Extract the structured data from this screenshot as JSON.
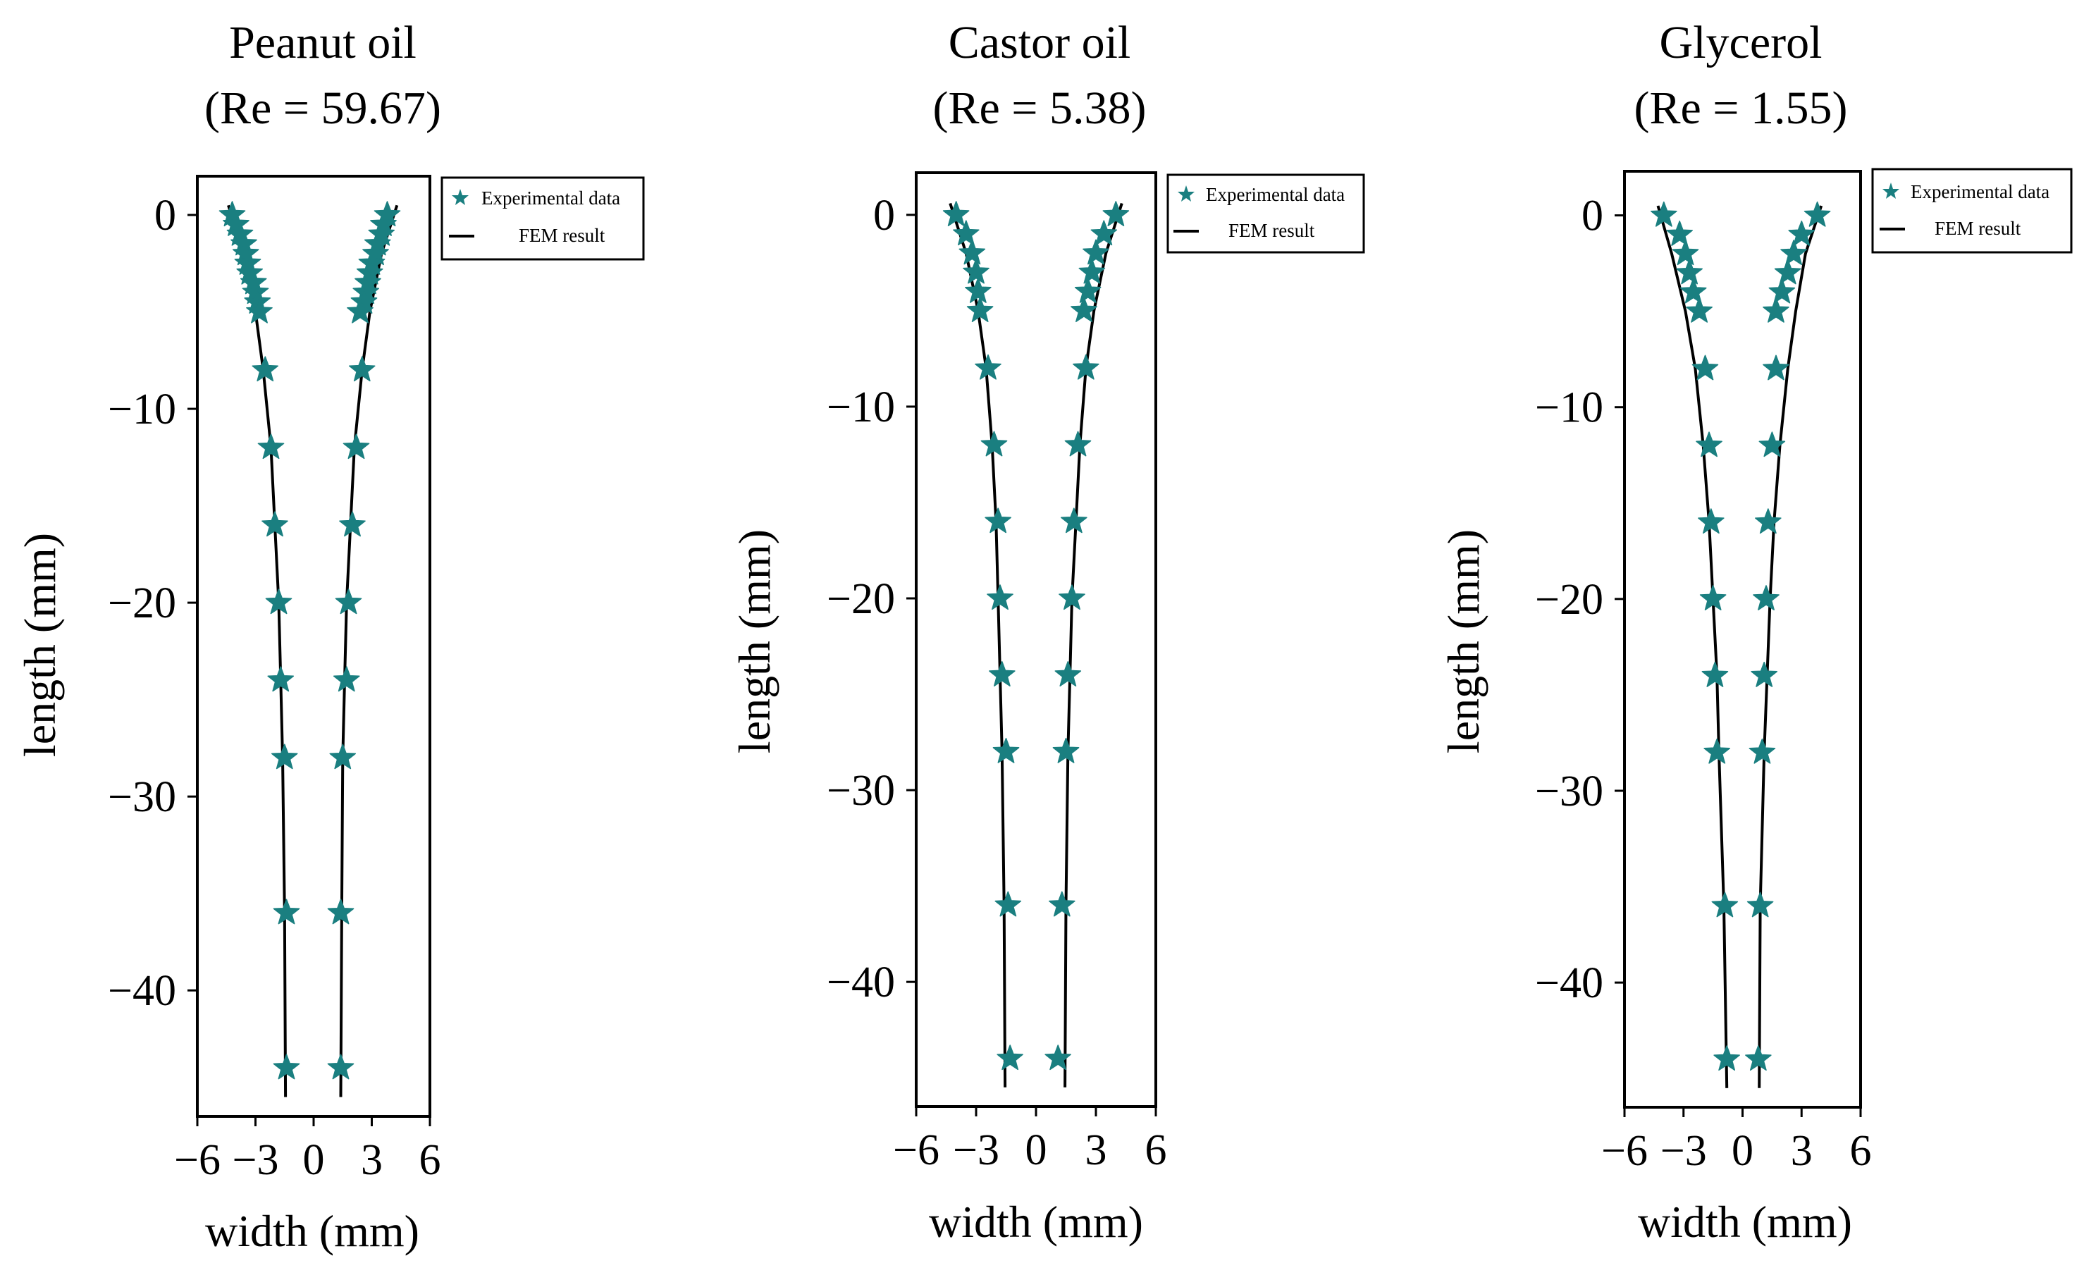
{
  "chart_data": [
    {
      "type": "line",
      "title": "Peanut oil",
      "subtitle": "(Re = 59.67)",
      "xlabel": "width (mm)",
      "ylabel": "length (mm)",
      "xlim": [
        -6,
        6
      ],
      "ylim": [
        -46.5,
        2
      ],
      "xticks": [
        -6,
        -3,
        0,
        3,
        6
      ],
      "xtick_labels": [
        "−6",
        "−3",
        "0",
        "3",
        "6"
      ],
      "yticks": [
        0,
        -10,
        -20,
        -30,
        -40
      ],
      "ytick_labels": [
        "0",
        "−10",
        "−20",
        "−30",
        "−40"
      ],
      "grid": false,
      "legend": {
        "placement": "outside-top-right",
        "entries": [
          "Experimental data",
          "FEM result"
        ]
      },
      "colors": {
        "experimental": "#1a7f80",
        "fem": "#000000"
      },
      "series": [
        {
          "name": "Experimental data",
          "marker": "star",
          "points": [
            [
              -4.2,
              0
            ],
            [
              -4.0,
              -0.5
            ],
            [
              -3.8,
              -1
            ],
            [
              -3.6,
              -1.5
            ],
            [
              -3.5,
              -2
            ],
            [
              -3.4,
              -2.5
            ],
            [
              -3.3,
              -3
            ],
            [
              -3.1,
              -3.5
            ],
            [
              -3.0,
              -4
            ],
            [
              -2.9,
              -4.5
            ],
            [
              -2.8,
              -5
            ],
            [
              -2.5,
              -8
            ],
            [
              -2.2,
              -12
            ],
            [
              -2.0,
              -16
            ],
            [
              -1.8,
              -20
            ],
            [
              -1.7,
              -24
            ],
            [
              -1.5,
              -28
            ],
            [
              -1.4,
              -36
            ],
            [
              -1.4,
              -44
            ],
            [
              3.8,
              0
            ],
            [
              3.6,
              -0.5
            ],
            [
              3.5,
              -1
            ],
            [
              3.3,
              -1.5
            ],
            [
              3.2,
              -2
            ],
            [
              3.0,
              -2.5
            ],
            [
              2.9,
              -3
            ],
            [
              2.8,
              -3.5
            ],
            [
              2.7,
              -4
            ],
            [
              2.6,
              -4.5
            ],
            [
              2.4,
              -5
            ],
            [
              2.5,
              -8
            ],
            [
              2.2,
              -12
            ],
            [
              2.0,
              -16
            ],
            [
              1.8,
              -20
            ],
            [
              1.7,
              -24
            ],
            [
              1.5,
              -28
            ],
            [
              1.4,
              -36
            ],
            [
              1.4,
              -44
            ]
          ]
        },
        {
          "name": "FEM result",
          "marker": "line",
          "left": [
            [
              -4.4,
              0.5
            ],
            [
              -3.6,
              -2
            ],
            [
              -3.0,
              -5
            ],
            [
              -2.6,
              -8
            ],
            [
              -2.2,
              -12
            ],
            [
              -2.0,
              -16
            ],
            [
              -1.8,
              -20
            ],
            [
              -1.7,
              -24
            ],
            [
              -1.6,
              -28
            ],
            [
              -1.5,
              -36
            ],
            [
              -1.45,
              -45.5
            ]
          ],
          "right": [
            [
              4.3,
              0.5
            ],
            [
              3.5,
              -2
            ],
            [
              2.9,
              -5
            ],
            [
              2.5,
              -8
            ],
            [
              2.1,
              -12
            ],
            [
              1.9,
              -16
            ],
            [
              1.7,
              -20
            ],
            [
              1.6,
              -24
            ],
            [
              1.5,
              -28
            ],
            [
              1.45,
              -36
            ],
            [
              1.4,
              -45.5
            ]
          ]
        }
      ]
    },
    {
      "type": "line",
      "title": "Castor oil",
      "subtitle": "(Re = 5.38)",
      "xlabel": "width (mm)",
      "ylabel": "length (mm)",
      "xlim": [
        -6,
        6
      ],
      "ylim": [
        -46.5,
        2.2
      ],
      "xticks": [
        -6,
        -3,
        0,
        3,
        6
      ],
      "xtick_labels": [
        "−6",
        "−3",
        "0",
        "3",
        "6"
      ],
      "yticks": [
        0,
        -10,
        -20,
        -30,
        -40
      ],
      "ytick_labels": [
        "0",
        "−10",
        "−20",
        "−30",
        "−40"
      ],
      "grid": false,
      "legend": {
        "placement": "outside-top-right",
        "entries": [
          "Experimental data",
          "FEM result"
        ]
      },
      "colors": {
        "experimental": "#1a7f80",
        "fem": "#000000"
      },
      "series": [
        {
          "name": "Experimental data",
          "marker": "star",
          "points": [
            [
              -4.0,
              0
            ],
            [
              -3.5,
              -1
            ],
            [
              -3.2,
              -2
            ],
            [
              -3.0,
              -3
            ],
            [
              -2.9,
              -4
            ],
            [
              -2.8,
              -5
            ],
            [
              -2.4,
              -8
            ],
            [
              -2.1,
              -12
            ],
            [
              -1.9,
              -16
            ],
            [
              -1.8,
              -20
            ],
            [
              -1.7,
              -24
            ],
            [
              -1.5,
              -28
            ],
            [
              -1.4,
              -36
            ],
            [
              -1.3,
              -44
            ],
            [
              4.0,
              0
            ],
            [
              3.4,
              -1
            ],
            [
              3.0,
              -2
            ],
            [
              2.8,
              -3
            ],
            [
              2.6,
              -4
            ],
            [
              2.4,
              -5
            ],
            [
              2.5,
              -8
            ],
            [
              2.1,
              -12
            ],
            [
              1.9,
              -16
            ],
            [
              1.8,
              -20
            ],
            [
              1.6,
              -24
            ],
            [
              1.5,
              -28
            ],
            [
              1.3,
              -36
            ],
            [
              1.1,
              -44
            ]
          ]
        },
        {
          "name": "FEM result",
          "marker": "line",
          "left": [
            [
              -4.3,
              0.6
            ],
            [
              -3.5,
              -2
            ],
            [
              -2.9,
              -5
            ],
            [
              -2.5,
              -8
            ],
            [
              -2.2,
              -12
            ],
            [
              -2.0,
              -16
            ],
            [
              -1.9,
              -20
            ],
            [
              -1.8,
              -24
            ],
            [
              -1.7,
              -28
            ],
            [
              -1.6,
              -36
            ],
            [
              -1.55,
              -45.5
            ]
          ],
          "right": [
            [
              4.3,
              0.6
            ],
            [
              3.5,
              -2
            ],
            [
              2.9,
              -5
            ],
            [
              2.5,
              -8
            ],
            [
              2.2,
              -12
            ],
            [
              2.0,
              -16
            ],
            [
              1.8,
              -20
            ],
            [
              1.7,
              -24
            ],
            [
              1.6,
              -28
            ],
            [
              1.5,
              -36
            ],
            [
              1.45,
              -45.5
            ]
          ]
        }
      ]
    },
    {
      "type": "line",
      "title": "Glycerol",
      "subtitle": "(Re = 1.55)",
      "xlabel": "width (mm)",
      "ylabel": "length (mm)",
      "xlim": [
        -6,
        6
      ],
      "ylim": [
        -46.5,
        2.3
      ],
      "xticks": [
        -6,
        -3,
        0,
        3,
        6
      ],
      "xtick_labels": [
        "−6",
        "−3",
        "0",
        "3",
        "6"
      ],
      "yticks": [
        0,
        -10,
        -20,
        -30,
        -40
      ],
      "ytick_labels": [
        "0",
        "−10",
        "−20",
        "−30",
        "−40"
      ],
      "grid": false,
      "legend": {
        "placement": "outside-top-right",
        "entries": [
          "Experimental data",
          "FEM result"
        ]
      },
      "colors": {
        "experimental": "#1a7f80",
        "fem": "#000000"
      },
      "series": [
        {
          "name": "Experimental data",
          "marker": "star",
          "points": [
            [
              -4.0,
              0
            ],
            [
              -3.2,
              -1
            ],
            [
              -2.9,
              -2
            ],
            [
              -2.7,
              -3
            ],
            [
              -2.5,
              -4
            ],
            [
              -2.2,
              -5
            ],
            [
              -1.9,
              -8
            ],
            [
              -1.7,
              -12
            ],
            [
              -1.6,
              -16
            ],
            [
              -1.5,
              -20
            ],
            [
              -1.4,
              -24
            ],
            [
              -1.3,
              -28
            ],
            [
              -0.9,
              -36
            ],
            [
              -0.8,
              -44
            ],
            [
              3.8,
              0
            ],
            [
              3.0,
              -1
            ],
            [
              2.6,
              -2
            ],
            [
              2.3,
              -3
            ],
            [
              2.0,
              -4
            ],
            [
              1.7,
              -5
            ],
            [
              1.7,
              -8
            ],
            [
              1.5,
              -12
            ],
            [
              1.3,
              -16
            ],
            [
              1.2,
              -20
            ],
            [
              1.1,
              -24
            ],
            [
              1.0,
              -28
            ],
            [
              0.9,
              -36
            ],
            [
              0.8,
              -44
            ]
          ]
        },
        {
          "name": "FEM result",
          "marker": "line",
          "left": [
            [
              -4.3,
              0.5
            ],
            [
              -3.6,
              -2
            ],
            [
              -2.9,
              -5
            ],
            [
              -2.4,
              -8
            ],
            [
              -2.0,
              -12
            ],
            [
              -1.7,
              -16
            ],
            [
              -1.5,
              -20
            ],
            [
              -1.3,
              -24
            ],
            [
              -1.2,
              -28
            ],
            [
              -0.95,
              -36
            ],
            [
              -0.8,
              -45.5
            ]
          ],
          "right": [
            [
              4.0,
              0.5
            ],
            [
              3.2,
              -2
            ],
            [
              2.7,
              -5
            ],
            [
              2.3,
              -8
            ],
            [
              1.9,
              -12
            ],
            [
              1.6,
              -16
            ],
            [
              1.4,
              -20
            ],
            [
              1.25,
              -24
            ],
            [
              1.1,
              -28
            ],
            [
              0.9,
              -36
            ],
            [
              0.85,
              -45.5
            ]
          ]
        }
      ]
    }
  ]
}
